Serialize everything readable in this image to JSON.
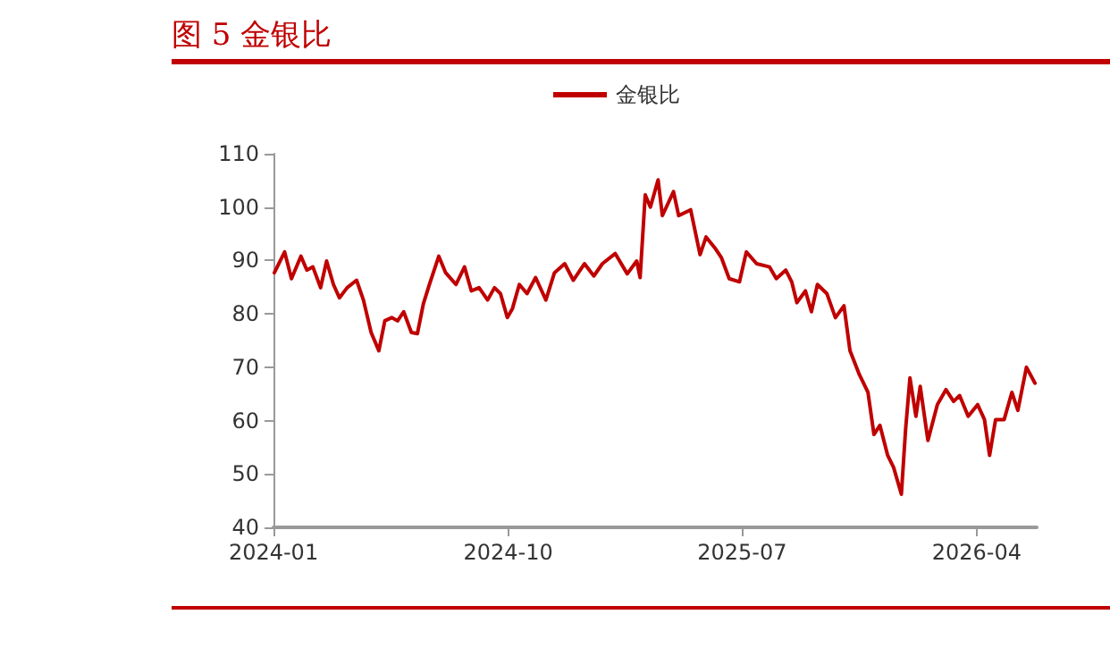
{
  "chart_data": {
    "type": "line",
    "title": "图 5 金银比",
    "legend": "top",
    "grid": false,
    "marker": "none",
    "line_style": "solid",
    "x": [
      "2024-01-02",
      "2024-01-14",
      "2024-01-22",
      "2024-02-02",
      "2024-02-09",
      "2024-02-16",
      "2024-02-25",
      "2024-03-03",
      "2024-03-11",
      "2024-03-18",
      "2024-03-27",
      "2024-04-07",
      "2024-04-15",
      "2024-04-24",
      "2024-05-03",
      "2024-05-10",
      "2024-05-18",
      "2024-05-25",
      "2024-06-01",
      "2024-06-10",
      "2024-06-17",
      "2024-06-24",
      "2024-07-01",
      "2024-07-12",
      "2024-07-20",
      "2024-08-01",
      "2024-08-11",
      "2024-08-19",
      "2024-08-28",
      "2024-09-07",
      "2024-09-15",
      "2024-09-22",
      "2024-09-30",
      "2024-10-06",
      "2024-10-14",
      "2024-10-23",
      "2024-11-02",
      "2024-11-14",
      "2024-11-24",
      "2024-12-06",
      "2024-12-16",
      "2024-12-29",
      "2025-01-09",
      "2025-01-19",
      "2025-02-03",
      "2025-02-17",
      "2025-02-28",
      "2025-03-04",
      "2025-03-10",
      "2025-03-16",
      "2025-03-25",
      "2025-03-30",
      "2025-04-12",
      "2025-04-18",
      "2025-05-02",
      "2025-05-13",
      "2025-05-20",
      "2025-05-31",
      "2025-06-07",
      "2025-06-16",
      "2025-06-28",
      "2025-07-06",
      "2025-07-18",
      "2025-08-02",
      "2025-08-10",
      "2025-08-21",
      "2025-08-28",
      "2025-09-03",
      "2025-09-13",
      "2025-09-20",
      "2025-09-27",
      "2025-10-08",
      "2025-10-18",
      "2025-10-28",
      "2025-11-04",
      "2025-11-15",
      "2025-11-25",
      "2025-12-02",
      "2025-12-09",
      "2025-12-18",
      "2025-12-25",
      "2026-01-03",
      "2026-01-08",
      "2026-01-13",
      "2026-01-20",
      "2026-01-25",
      "2026-02-03",
      "2026-02-14",
      "2026-02-24",
      "2026-03-05",
      "2026-03-12",
      "2026-03-22",
      "2026-04-02",
      "2026-04-10",
      "2026-04-16",
      "2026-04-23",
      "2026-05-03",
      "2026-05-12",
      "2026-05-19",
      "2026-05-29",
      "2026-06-08"
    ],
    "series": [
      {
        "name": "金银比",
        "color": "#c00000",
        "values": [
          87.7,
          91.6,
          86.6,
          90.8,
          88.2,
          88.8,
          84.9,
          89.9,
          85.5,
          83.0,
          84.9,
          86.3,
          82.6,
          76.5,
          73.1,
          78.7,
          79.3,
          78.7,
          80.4,
          76.5,
          76.3,
          81.9,
          85.5,
          90.8,
          87.7,
          85.5,
          88.8,
          84.3,
          84.9,
          82.6,
          84.9,
          83.8,
          79.3,
          81.0,
          85.5,
          83.8,
          86.8,
          82.6,
          87.7,
          89.4,
          86.3,
          89.4,
          87.1,
          89.4,
          91.3,
          87.5,
          89.9,
          86.8,
          102.3,
          100.0,
          105.1,
          98.4,
          102.9,
          98.4,
          99.5,
          91.1,
          94.4,
          92.2,
          90.5,
          86.6,
          86.0,
          91.6,
          89.4,
          88.8,
          86.6,
          88.2,
          86.0,
          82.1,
          84.3,
          80.4,
          85.5,
          83.8,
          79.3,
          81.5,
          73.1,
          68.6,
          65.3,
          57.4,
          59.1,
          53.5,
          51.2,
          46.2,
          58.5,
          68.0,
          60.8,
          66.4,
          56.3,
          63.0,
          65.8,
          63.6,
          64.7,
          60.8,
          63.0,
          60.2,
          53.5,
          60.2,
          60.2,
          65.3,
          61.9,
          70.0,
          67.0
        ]
      }
    ],
    "xlim": [
      "2024-01-01",
      "2026-06-10"
    ],
    "xticks": [
      "2024-01",
      "2024-10",
      "2025-07",
      "2026-04"
    ],
    "ylim": [
      40,
      110
    ],
    "yticks": [
      40,
      50,
      60,
      70,
      80,
      90,
      100,
      110
    ]
  }
}
